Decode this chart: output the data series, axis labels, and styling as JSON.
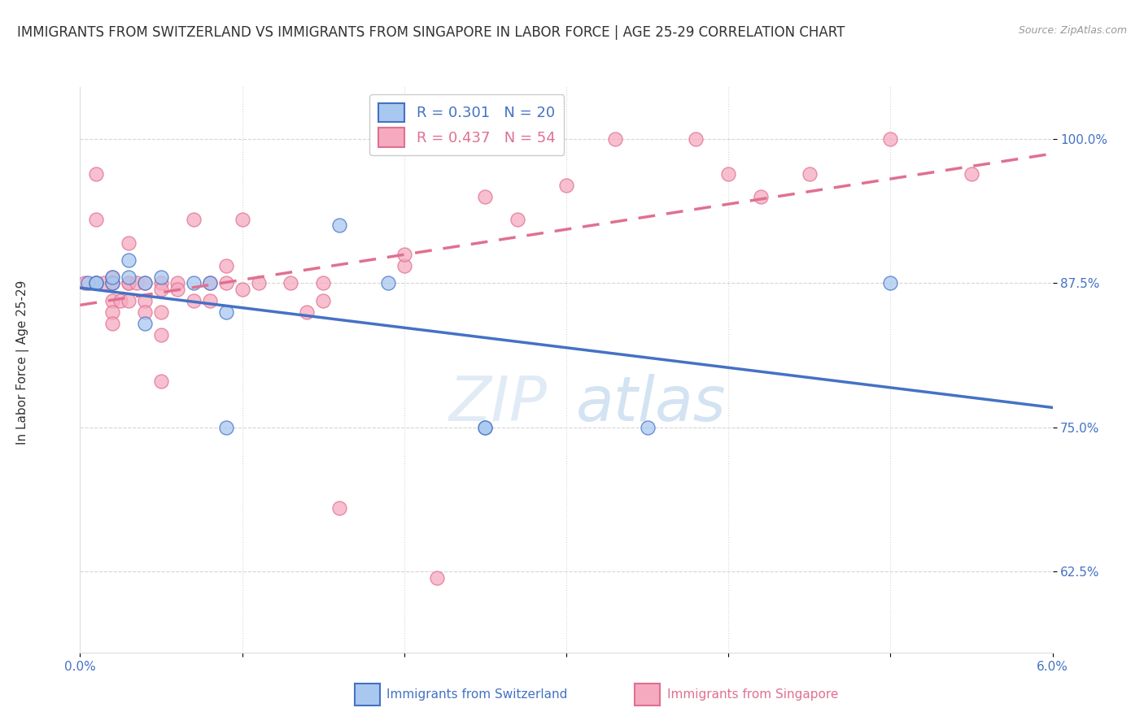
{
  "title": "IMMIGRANTS FROM SWITZERLAND VS IMMIGRANTS FROM SINGAPORE IN LABOR FORCE | AGE 25-29 CORRELATION CHART",
  "source": "Source: ZipAtlas.com",
  "ylabel": "In Labor Force | Age 25-29",
  "yticks": [
    0.625,
    0.75,
    0.875,
    1.0
  ],
  "ytick_labels": [
    "62.5%",
    "75.0%",
    "87.5%",
    "100.0%"
  ],
  "xlim": [
    0.0,
    0.06
  ],
  "ylim": [
    0.555,
    1.045
  ],
  "legend_R_switzerland": "R = 0.301",
  "legend_N_switzerland": "N = 20",
  "legend_R_singapore": "R = 0.437",
  "legend_N_singapore": "N = 54",
  "legend_label_switzerland": "Immigrants from Switzerland",
  "legend_label_singapore": "Immigrants from Singapore",
  "color_switzerland": "#A8C8F0",
  "color_singapore": "#F5AABF",
  "color_line_switzerland": "#4472C4",
  "color_line_singapore": "#E07090",
  "color_axis_labels": "#4472C4",
  "color_title": "#333333",
  "color_grid": "#CCCCCC",
  "switzerland_x": [
    0.0005,
    0.001,
    0.001,
    0.002,
    0.002,
    0.003,
    0.003,
    0.004,
    0.004,
    0.005,
    0.007,
    0.008,
    0.009,
    0.009,
    0.016,
    0.019,
    0.025,
    0.025,
    0.035,
    0.05
  ],
  "switzerland_y": [
    0.875,
    0.875,
    0.875,
    0.875,
    0.88,
    0.895,
    0.88,
    0.875,
    0.84,
    0.88,
    0.875,
    0.875,
    0.85,
    0.75,
    0.925,
    0.875,
    0.75,
    0.75,
    0.75,
    0.875
  ],
  "singapore_x": [
    0.0003,
    0.001,
    0.001,
    0.001,
    0.0015,
    0.002,
    0.002,
    0.002,
    0.002,
    0.002,
    0.002,
    0.0025,
    0.003,
    0.003,
    0.003,
    0.003,
    0.0035,
    0.004,
    0.004,
    0.004,
    0.005,
    0.005,
    0.005,
    0.005,
    0.005,
    0.006,
    0.006,
    0.007,
    0.007,
    0.008,
    0.008,
    0.009,
    0.009,
    0.01,
    0.01,
    0.011,
    0.013,
    0.014,
    0.015,
    0.015,
    0.016,
    0.02,
    0.02,
    0.022,
    0.025,
    0.027,
    0.03,
    0.033,
    0.038,
    0.04,
    0.042,
    0.045,
    0.05,
    0.055
  ],
  "singapore_y": [
    0.875,
    0.97,
    0.93,
    0.875,
    0.875,
    0.875,
    0.88,
    0.875,
    0.86,
    0.85,
    0.84,
    0.86,
    0.875,
    0.875,
    0.91,
    0.86,
    0.875,
    0.875,
    0.86,
    0.85,
    0.875,
    0.87,
    0.85,
    0.83,
    0.79,
    0.875,
    0.87,
    0.93,
    0.86,
    0.875,
    0.86,
    0.89,
    0.875,
    0.93,
    0.87,
    0.875,
    0.875,
    0.85,
    0.875,
    0.86,
    0.68,
    0.89,
    0.9,
    0.62,
    0.95,
    0.93,
    0.96,
    1.0,
    1.0,
    0.97,
    0.95,
    0.97,
    1.0,
    0.97
  ],
  "background_color": "#FFFFFF",
  "watermark_zip": "ZIP",
  "watermark_atlas": "atlas",
  "title_fontsize": 12,
  "source_fontsize": 9,
  "axis_label_fontsize": 11,
  "tick_fontsize": 11,
  "legend_fontsize": 13
}
